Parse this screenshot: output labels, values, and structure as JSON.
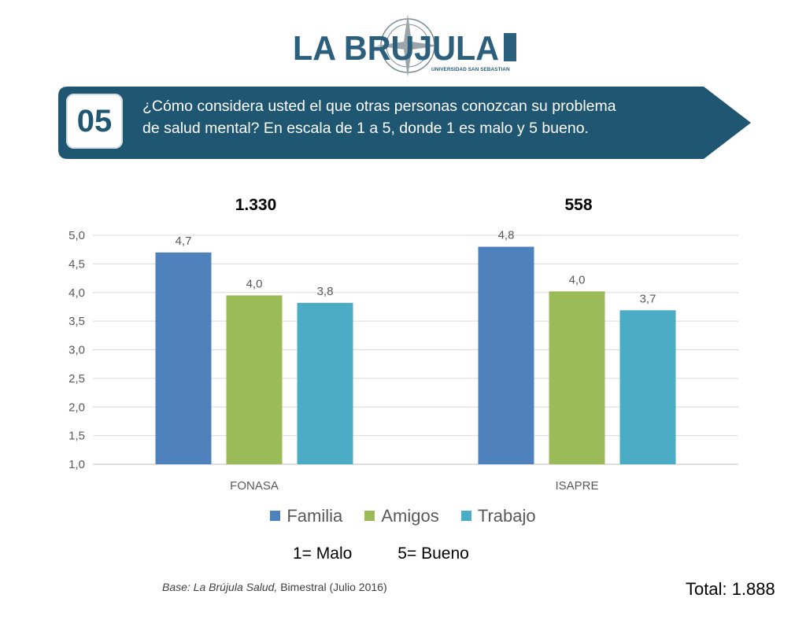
{
  "logo": {
    "text": "LA BRUJULA",
    "subtext": "UNIVERSIDAD SAN SEBASTIAN"
  },
  "banner": {
    "number": "05",
    "question_line1": "¿Cómo considera usted el que otras personas conozcan su problema",
    "question_line2": "de salud mental? En escala de 1 a 5, donde 1 es malo y 5 bueno.",
    "colors": {
      "arrow": "#1f5672",
      "badge_text": "#1f5672"
    }
  },
  "chart_data": {
    "type": "bar",
    "categories": [
      "FONASA",
      "ISAPRE"
    ],
    "group_totals": [
      "1.330",
      "558"
    ],
    "series": [
      {
        "name": "Familia",
        "values": [
          4.7,
          4.8
        ],
        "labels": [
          "4,7",
          "4,8"
        ],
        "color": "#4f81bd"
      },
      {
        "name": "Amigos",
        "values": [
          3.95,
          4.02
        ],
        "labels": [
          "4,0",
          "4,0"
        ],
        "color": "#9bbb59"
      },
      {
        "name": "Trabajo",
        "values": [
          3.82,
          3.69
        ],
        "labels": [
          "3,8",
          "3,7"
        ],
        "color": "#4bacc6"
      }
    ],
    "ylim": [
      1.0,
      5.0
    ],
    "yticks": [
      {
        "value": 1.0,
        "label": "1,0"
      },
      {
        "value": 1.5,
        "label": "1,5"
      },
      {
        "value": 2.0,
        "label": "2,0"
      },
      {
        "value": 2.5,
        "label": "2,5"
      },
      {
        "value": 3.0,
        "label": "3,0"
      },
      {
        "value": 3.5,
        "label": "3,5"
      },
      {
        "value": 4.0,
        "label": "4,0"
      },
      {
        "value": 4.5,
        "label": "4,5"
      },
      {
        "value": 5.0,
        "label": "5,0"
      }
    ],
    "grid": true,
    "legend_position": "bottom"
  },
  "scale_note": {
    "low": "1= Malo",
    "high": "5= Bueno"
  },
  "source": {
    "name": "Base: La Brújula Salud,",
    "period": " Bimestral (Julio 2016)"
  },
  "total": "Total: 1.888"
}
